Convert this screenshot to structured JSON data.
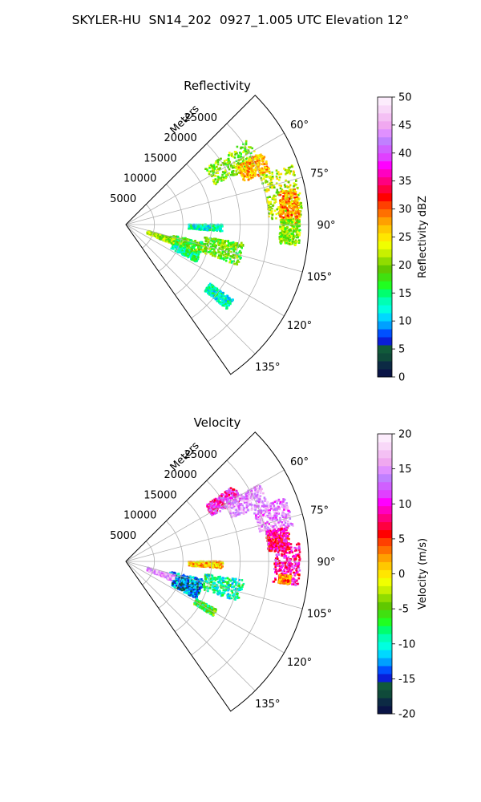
{
  "figure": {
    "title": "SKYLER-HU  SN14_202  0927_1.005 UTC Elevation 12°",
    "range_unit": "Meters"
  },
  "chart_data": [
    {
      "type": "ppi-polar",
      "title": "Reflectivity",
      "azimuth_range": [
        45,
        145
      ],
      "azimuth_ticks": [
        "60°",
        "75°",
        "90°",
        "105°",
        "120°",
        "135°"
      ],
      "azimuth_tick_values": [
        60,
        75,
        90,
        105,
        120,
        135
      ],
      "range_ticks": [
        "5000",
        "10000",
        "15000",
        "20000",
        "25000"
      ],
      "range_tick_values": [
        5000,
        10000,
        15000,
        20000,
        25000
      ],
      "range_max": 32000,
      "range_label": "Meters",
      "colorbar": {
        "label": "Reflectivity dBZ",
        "min": 0,
        "max": 50,
        "ticks": [
          "0",
          "5",
          "10",
          "15",
          "20",
          "25",
          "30",
          "35",
          "40",
          "45",
          "50"
        ],
        "tick_values": [
          0,
          5,
          10,
          15,
          20,
          25,
          30,
          35,
          40,
          45,
          50
        ],
        "colors": [
          "#0a1446",
          "#0c2a44",
          "#0f4a3a",
          "#115a3a",
          "#0a1ed8",
          "#0050ff",
          "#00a0ff",
          "#00d8ff",
          "#00ffe0",
          "#00ffb4",
          "#00ff6e",
          "#20ff20",
          "#40e010",
          "#60c800",
          "#90dc00",
          "#c8f000",
          "#f0ff00",
          "#ffe600",
          "#ffc800",
          "#ffa000",
          "#ff7000",
          "#ff4000",
          "#ff0000",
          "#ff0040",
          "#ff0080",
          "#ff00c0",
          "#ff00ff",
          "#e040ff",
          "#d060ff",
          "#c080ff",
          "#e090ff",
          "#f0a8f0",
          "#f4c0f4",
          "#f8d8f8",
          "#fcecfc"
        ]
      },
      "echo_regions": [
        {
          "az": [
            55,
            66
          ],
          "range": [
            17000,
            26000
          ],
          "value": 20
        },
        {
          "az": [
            62,
            70
          ],
          "range": [
            22000,
            27000
          ],
          "value": 27
        },
        {
          "az": [
            70,
            88
          ],
          "range": [
            25000,
            31000
          ],
          "value": 22
        },
        {
          "az": [
            78,
            90
          ],
          "range": [
            27000,
            30500
          ],
          "value": 28
        },
        {
          "az": [
            88,
            97
          ],
          "range": [
            27000,
            30500
          ],
          "value": 20
        },
        {
          "az": [
            90,
            94
          ],
          "range": [
            11000,
            17000
          ],
          "value": 13
        },
        {
          "az": [
            99,
            110
          ],
          "range": [
            14000,
            21000
          ],
          "value": 19
        },
        {
          "az": [
            103,
            112
          ],
          "range": [
            8000,
            14000
          ],
          "value": 18
        },
        {
          "az": [
            106,
            113
          ],
          "range": [
            4000,
            9000
          ],
          "value": 21
        },
        {
          "az": [
            112,
            118
          ],
          "range": [
            9000,
            14000
          ],
          "value": 14
        },
        {
          "az": [
            125,
            130
          ],
          "range": [
            18000,
            23000
          ],
          "value": 13
        }
      ]
    },
    {
      "type": "ppi-polar",
      "title": "Velocity",
      "azimuth_range": [
        45,
        145
      ],
      "azimuth_ticks": [
        "60°",
        "75°",
        "90°",
        "105°",
        "120°",
        "135°"
      ],
      "azimuth_tick_values": [
        60,
        75,
        90,
        105,
        120,
        135
      ],
      "range_ticks": [
        "5000",
        "10000",
        "15000",
        "20000",
        "25000"
      ],
      "range_tick_values": [
        5000,
        10000,
        15000,
        20000,
        25000
      ],
      "range_max": 32000,
      "range_label": "Meters",
      "colorbar": {
        "label": "Velocity (m/s)",
        "min": -20,
        "max": 20,
        "ticks": [
          "-20",
          "-15",
          "-10",
          "-5",
          "0",
          "5",
          "10",
          "15",
          "20"
        ],
        "tick_values": [
          -20,
          -15,
          -10,
          -5,
          0,
          5,
          10,
          15,
          20
        ],
        "colors": [
          "#0a1446",
          "#0c2a44",
          "#0f4a3a",
          "#115a3a",
          "#0a1ed8",
          "#0050ff",
          "#00a0ff",
          "#00d8ff",
          "#00ffe0",
          "#00ffb4",
          "#00ff6e",
          "#20ff20",
          "#40e010",
          "#60c800",
          "#90dc00",
          "#c8f000",
          "#f0ff00",
          "#ffe600",
          "#ffc800",
          "#ffa000",
          "#ff7000",
          "#ff4000",
          "#ff0000",
          "#ff0040",
          "#ff0080",
          "#ff00c0",
          "#ff00ff",
          "#e040ff",
          "#d060ff",
          "#c080ff",
          "#e090ff",
          "#f0a8f0",
          "#f4c0f4",
          "#f8d8f8",
          "#fcecfc"
        ]
      },
      "echo_regions": [
        {
          "az": [
            55,
            62
          ],
          "range": [
            17000,
            23000
          ],
          "value": 10
        },
        {
          "az": [
            60,
            68
          ],
          "range": [
            20000,
            27000
          ],
          "value": 15
        },
        {
          "az": [
            68,
            78
          ],
          "range": [
            24000,
            30000
          ],
          "value": 14
        },
        {
          "az": [
            78,
            86
          ],
          "range": [
            25000,
            29000
          ],
          "value": 8
        },
        {
          "az": [
            84,
            98
          ],
          "range": [
            26000,
            30500
          ],
          "value": 9
        },
        {
          "az": [
            95,
            98
          ],
          "range": [
            27000,
            29000
          ],
          "value": 3
        },
        {
          "az": [
            90,
            94
          ],
          "range": [
            11000,
            17000
          ],
          "value": 1
        },
        {
          "az": [
            99,
            110
          ],
          "range": [
            14000,
            21000
          ],
          "value": -9
        },
        {
          "az": [
            103,
            112
          ],
          "range": [
            8000,
            14000
          ],
          "value": -13
        },
        {
          "az": [
            106,
            113
          ],
          "range": [
            4000,
            9000
          ],
          "value": 15
        },
        {
          "az": [
            112,
            118
          ],
          "range": [
            9000,
            14000
          ],
          "value": -13
        },
        {
          "az": [
            118,
            122
          ],
          "range": [
            14000,
            18000
          ],
          "value": -6
        }
      ]
    }
  ]
}
